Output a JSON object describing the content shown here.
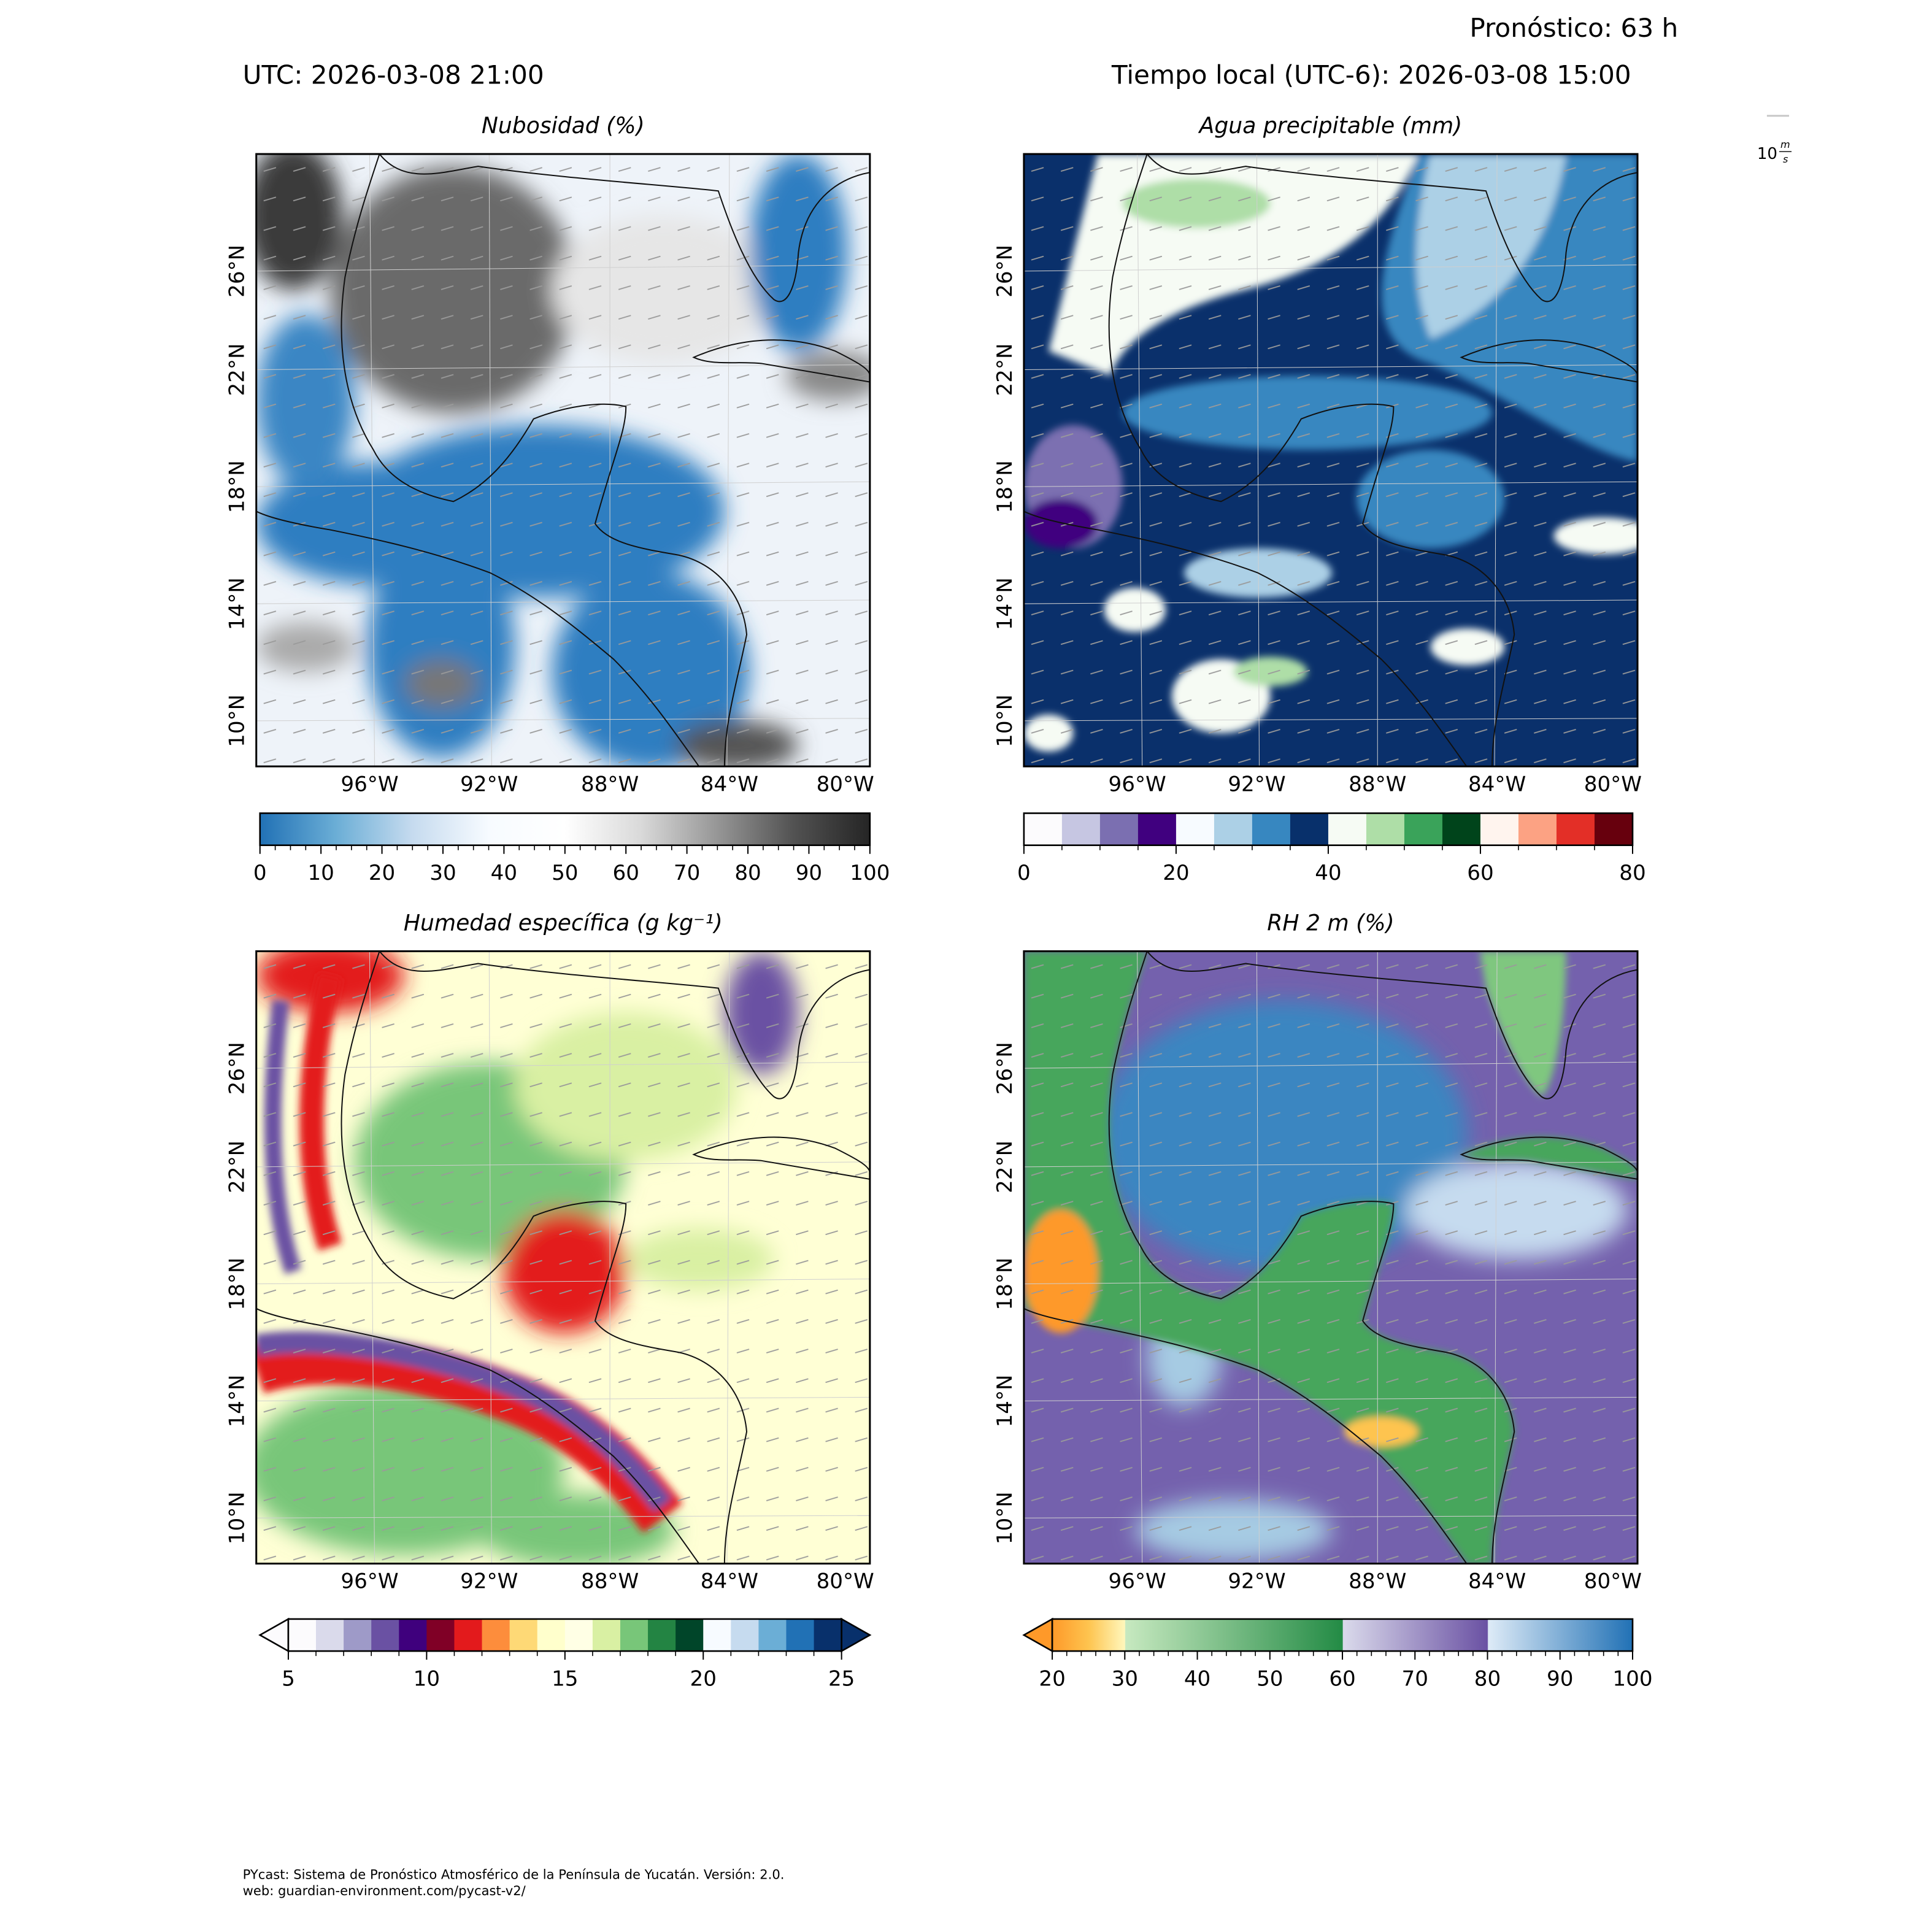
{
  "header": {
    "forecast": "Pronóstico: 63 h",
    "utc": "UTC:  2026-03-08 21:00",
    "local": "Tiempo local (UTC-6): 2026-03-08 15:00"
  },
  "vector_key": {
    "value": "10",
    "unit_num": "m",
    "unit_den": "s"
  },
  "lat_labels": [
    "26°N",
    "22°N",
    "18°N",
    "14°N",
    "10°N"
  ],
  "lon_labels": [
    "96°W",
    "92°W",
    "88°W",
    "84°W",
    "80°W"
  ],
  "panels": [
    {
      "title": "Nubosidad (%)",
      "colorbar": {
        "min": 0,
        "max": 100,
        "ticks": [
          0,
          10,
          20,
          30,
          40,
          50,
          60,
          70,
          80,
          90,
          100
        ],
        "minor": 2.5,
        "extend": "none",
        "gradient": [
          "#2171b5",
          "#6baed6",
          "#c6dbef",
          "#f7fbff",
          "#ffffff",
          "#d9d9d9",
          "#969696",
          "#525252",
          "#252525"
        ]
      }
    },
    {
      "title": "Agua precipitable (mm)",
      "colorbar": {
        "min": 0,
        "max": 80,
        "ticks": [
          0,
          20,
          40,
          60,
          80
        ],
        "minor": 5,
        "extend": "none",
        "colors": [
          "#fcfbfd",
          "#c6c6e2",
          "#7b6fb1",
          "#40007f",
          "#f7fbff",
          "#acd0e6",
          "#3787c0",
          "#08306b",
          "#f6fbf4",
          "#aedea7",
          "#3aa35a",
          "#00441b",
          "#fff4ee",
          "#fca283",
          "#e32f27",
          "#67000d"
        ]
      }
    },
    {
      "title": "Humedad específica (g kg⁻¹)",
      "colorbar": {
        "min": 5,
        "max": 25,
        "ticks": [
          5,
          10,
          15,
          20,
          25
        ],
        "minor": 1,
        "extend": "both",
        "colors": [
          "#fcfbfd",
          "#dadaeb",
          "#9e9ac8",
          "#6a51a3",
          "#3f007d",
          "#800026",
          "#e31a1c",
          "#fd8d3c",
          "#fed976",
          "#ffffcc",
          "#ffffe5",
          "#d9f0a3",
          "#78c679",
          "#238443",
          "#004529",
          "#f7fbff",
          "#c6dbef",
          "#6baed6",
          "#2171b5",
          "#08306b"
        ]
      }
    },
    {
      "title": "RH 2 m (%)",
      "colorbar": {
        "min": 20,
        "max": 100,
        "ticks": [
          20,
          30,
          40,
          50,
          60,
          70,
          80,
          90,
          100
        ],
        "minor": 2,
        "extend": "min",
        "stops": [
          [
            20,
            "#fe9929"
          ],
          [
            25,
            "#fec44f"
          ],
          [
            30,
            "#fff7bc"
          ],
          [
            30.1,
            "#c7e9c0"
          ],
          [
            60,
            "#238b45"
          ],
          [
            60.1,
            "#dadaeb"
          ],
          [
            80,
            "#6a51a3"
          ],
          [
            80.1,
            "#deebf7"
          ],
          [
            100,
            "#2171b5"
          ]
        ]
      }
    }
  ],
  "footer": {
    "line1": "PYcast: Sistema de Pronóstico Atmosférico de la Península de Yucatán. Versión: 2.0.",
    "line2": "web: guardian-environment.com/pycast-v2/"
  }
}
